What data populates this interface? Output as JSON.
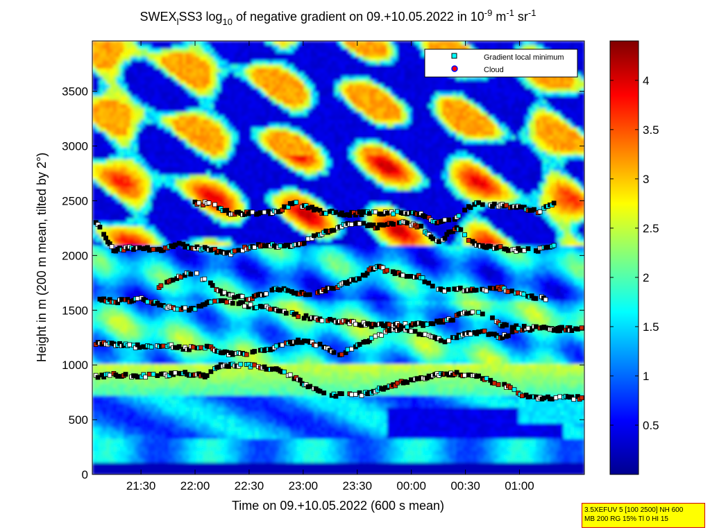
{
  "title": {
    "prefix": "SWEX",
    "sub_l": "l",
    "mid": "SS3 log",
    "sub_10": "10",
    "main": " of negative gradient on 09.+10.05.2022 in 10",
    "sup_neg9": "-9",
    "unit_m": " m",
    "sup_neg1a": "-1",
    "unit_sr": " sr",
    "sup_neg1b": "-1"
  },
  "chart_data": {
    "type": "heatmap",
    "xlabel": "Time on 09.+10.05.2022 (600 s mean)",
    "ylabel": "Height in m (200 m mean, tilted by 2°)",
    "x_ticks": [
      "21:30",
      "22:00",
      "22:30",
      "23:00",
      "23:30",
      "00:00",
      "00:30",
      "01:00"
    ],
    "x_tick_minutes": [
      90,
      120,
      150,
      180,
      210,
      240,
      270,
      300
    ],
    "x_range_minutes": [
      63,
      336
    ],
    "y_ticks": [
      0,
      500,
      1000,
      1500,
      2000,
      2500,
      3000,
      3500
    ],
    "y_range": [
      0,
      3960
    ],
    "colorbar": {
      "range": [
        0,
        4.4
      ],
      "ticks": [
        "0.5",
        "1",
        "1.5",
        "2",
        "2.5",
        "3",
        "3.5",
        "4"
      ],
      "tick_values": [
        0.5,
        1,
        1.5,
        2,
        2.5,
        3,
        3.5,
        4
      ],
      "colormap": "jet"
    },
    "legend": {
      "placement": "top-right",
      "entries": [
        {
          "label": "Gradient local minimum",
          "marker": "square",
          "color": "#00ffff"
        },
        {
          "label": "Cloud",
          "marker": "circle",
          "color": "#ff0000",
          "edge": "#0000ff"
        }
      ]
    },
    "layers": [
      {
        "name": "lowest-layer",
        "points": [
          [
            65,
            900
          ],
          [
            75,
            910
          ],
          [
            90,
            900
          ],
          [
            105,
            910
          ],
          [
            115,
            920
          ],
          [
            125,
            900
          ],
          [
            135,
            1000
          ],
          [
            145,
            1000
          ],
          [
            155,
            990
          ],
          [
            165,
            960
          ],
          [
            175,
            880
          ],
          [
            185,
            790
          ],
          [
            195,
            730
          ],
          [
            205,
            720
          ],
          [
            215,
            740
          ],
          [
            225,
            790
          ],
          [
            235,
            840
          ],
          [
            245,
            880
          ],
          [
            255,
            910
          ],
          [
            265,
            920
          ],
          [
            275,
            900
          ],
          [
            285,
            850
          ],
          [
            295,
            790
          ],
          [
            305,
            700
          ],
          [
            315,
            700
          ],
          [
            325,
            700
          ],
          [
            335,
            700
          ]
        ]
      },
      {
        "name": "layer-1100",
        "points": [
          [
            65,
            1200
          ],
          [
            80,
            1180
          ],
          [
            95,
            1160
          ],
          [
            105,
            1180
          ],
          [
            115,
            1150
          ],
          [
            125,
            1170
          ],
          [
            140,
            1100
          ],
          [
            150,
            1100
          ],
          [
            160,
            1140
          ],
          [
            170,
            1200
          ],
          [
            180,
            1220
          ],
          [
            190,
            1180
          ],
          [
            200,
            1100
          ],
          [
            210,
            1170
          ],
          [
            220,
            1250
          ],
          [
            230,
            1330
          ],
          [
            240,
            1320
          ],
          [
            250,
            1260
          ],
          [
            260,
            1220
          ],
          [
            270,
            1290
          ],
          [
            280,
            1300
          ],
          [
            290,
            1250
          ],
          [
            300,
            1330
          ],
          [
            310,
            1330
          ],
          [
            320,
            1330
          ],
          [
            335,
            1330
          ]
        ]
      },
      {
        "name": "layer-1500",
        "points": [
          [
            65,
            1600
          ],
          [
            75,
            1580
          ],
          [
            90,
            1600
          ],
          [
            100,
            1560
          ],
          [
            110,
            1500
          ],
          [
            120,
            1520
          ],
          [
            130,
            1580
          ],
          [
            140,
            1580
          ],
          [
            150,
            1540
          ],
          [
            160,
            1520
          ],
          [
            170,
            1480
          ],
          [
            180,
            1440
          ],
          [
            190,
            1420
          ],
          [
            200,
            1400
          ],
          [
            210,
            1380
          ],
          [
            220,
            1360
          ],
          [
            230,
            1370
          ],
          [
            240,
            1360
          ],
          [
            250,
            1380
          ],
          [
            260,
            1400
          ],
          [
            270,
            1480
          ],
          [
            280,
            1480
          ],
          [
            290,
            1360
          ],
          [
            300,
            1340
          ],
          [
            310,
            1340
          ],
          [
            320,
            1320
          ],
          [
            335,
            1330
          ]
        ]
      },
      {
        "name": "layer-1700",
        "points": [
          [
            100,
            1700
          ],
          [
            110,
            1800
          ],
          [
            120,
            1850
          ],
          [
            135,
            1650
          ],
          [
            150,
            1600
          ],
          [
            165,
            1700
          ],
          [
            175,
            1660
          ],
          [
            185,
            1640
          ],
          [
            195,
            1700
          ],
          [
            210,
            1780
          ],
          [
            220,
            1900
          ],
          [
            230,
            1840
          ],
          [
            245,
            1800
          ],
          [
            255,
            1680
          ],
          [
            265,
            1700
          ],
          [
            275,
            1680
          ],
          [
            290,
            1700
          ],
          [
            300,
            1650
          ],
          [
            315,
            1600
          ]
        ]
      },
      {
        "name": "layer-2000",
        "points": [
          [
            65,
            2300
          ],
          [
            75,
            2050
          ],
          [
            85,
            2070
          ],
          [
            100,
            2050
          ],
          [
            110,
            2100
          ],
          [
            125,
            2060
          ],
          [
            140,
            2020
          ],
          [
            150,
            2080
          ],
          [
            160,
            2100
          ],
          [
            170,
            2080
          ],
          [
            180,
            2120
          ],
          [
            190,
            2200
          ],
          [
            200,
            2260
          ],
          [
            210,
            2300
          ],
          [
            220,
            2260
          ],
          [
            235,
            2300
          ],
          [
            245,
            2260
          ],
          [
            255,
            2120
          ],
          [
            265,
            2260
          ],
          [
            275,
            2100
          ],
          [
            285,
            2080
          ],
          [
            295,
            2050
          ],
          [
            310,
            2050
          ],
          [
            320,
            2100
          ]
        ]
      },
      {
        "name": "layer-2400",
        "points": [
          [
            120,
            2480
          ],
          [
            130,
            2470
          ],
          [
            140,
            2380
          ],
          [
            155,
            2390
          ],
          [
            165,
            2400
          ],
          [
            175,
            2480
          ],
          [
            190,
            2400
          ],
          [
            205,
            2380
          ],
          [
            220,
            2390
          ],
          [
            230,
            2390
          ],
          [
            245,
            2380
          ],
          [
            255,
            2300
          ],
          [
            265,
            2340
          ],
          [
            275,
            2480
          ],
          [
            285,
            2460
          ],
          [
            300,
            2440
          ],
          [
            310,
            2400
          ],
          [
            320,
            2480
          ]
        ]
      }
    ]
  },
  "info_box": {
    "line1": "3.5XEFUV 5 [100 2500] NH 600",
    "line2": "MB 200 RG 15% Tl 0 HI 15"
  }
}
